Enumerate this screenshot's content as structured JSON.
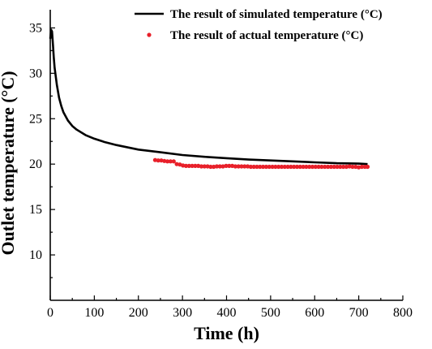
{
  "chart_data": {
    "type": "line",
    "xlabel": "Time (h)",
    "ylabel": "Outlet temperature  (°C)",
    "xlim": [
      0,
      800
    ],
    "ylim": [
      5,
      37
    ],
    "xticks": [
      "0",
      "100",
      "200",
      "300",
      "400",
      "500",
      "600",
      "700",
      "800"
    ],
    "yticks": [
      "10",
      "15",
      "20",
      "25",
      "30",
      "35"
    ],
    "x_tick_values": [
      0,
      100,
      200,
      300,
      400,
      500,
      600,
      700,
      800
    ],
    "y_tick_values": [
      10,
      15,
      20,
      25,
      30,
      35
    ],
    "grid": false,
    "legend_position": "top-right",
    "series": [
      {
        "name": "The result of simulated temperature  (°C)",
        "kind": "line",
        "color": "#000000",
        "x": [
          0,
          2,
          4,
          6,
          8,
          10,
          15,
          20,
          25,
          30,
          40,
          50,
          60,
          80,
          100,
          125,
          150,
          200,
          250,
          300,
          350,
          400,
          450,
          500,
          550,
          600,
          650,
          700,
          720
        ],
        "y": [
          33.8,
          34.8,
          34.6,
          33.2,
          31.8,
          30.6,
          28.7,
          27.3,
          26.4,
          25.7,
          24.8,
          24.2,
          23.8,
          23.2,
          22.8,
          22.4,
          22.1,
          21.6,
          21.3,
          21.0,
          20.8,
          20.65,
          20.5,
          20.4,
          20.3,
          20.2,
          20.1,
          20.05,
          20.0
        ]
      },
      {
        "name": "The result of actual temperature  (°C)",
        "kind": "scatter",
        "color": "#e8202a",
        "x": [
          238,
          245,
          252,
          259,
          266,
          273,
          280,
          287,
          294,
          301,
          308,
          315,
          322,
          329,
          336,
          343,
          350,
          357,
          364,
          371,
          378,
          385,
          392,
          399,
          406,
          413,
          420,
          427,
          434,
          441,
          448,
          455,
          462,
          469,
          476,
          483,
          490,
          497,
          504,
          511,
          518,
          525,
          532,
          539,
          546,
          553,
          560,
          567,
          574,
          581,
          588,
          595,
          602,
          609,
          616,
          623,
          630,
          637,
          644,
          651,
          658,
          665,
          672,
          679,
          686,
          693,
          700,
          707,
          714,
          720
        ],
        "y": [
          20.45,
          20.4,
          20.4,
          20.35,
          20.3,
          20.3,
          20.3,
          20.0,
          19.95,
          19.85,
          19.8,
          19.8,
          19.8,
          19.8,
          19.8,
          19.75,
          19.75,
          19.75,
          19.7,
          19.7,
          19.75,
          19.75,
          19.75,
          19.8,
          19.8,
          19.8,
          19.75,
          19.75,
          19.75,
          19.75,
          19.75,
          19.7,
          19.7,
          19.7,
          19.7,
          19.7,
          19.7,
          19.7,
          19.7,
          19.7,
          19.7,
          19.7,
          19.7,
          19.7,
          19.7,
          19.7,
          19.7,
          19.7,
          19.7,
          19.7,
          19.7,
          19.7,
          19.7,
          19.7,
          19.7,
          19.7,
          19.7,
          19.7,
          19.7,
          19.7,
          19.7,
          19.7,
          19.7,
          19.75,
          19.7,
          19.7,
          19.65,
          19.7,
          19.7,
          19.7
        ]
      }
    ]
  }
}
